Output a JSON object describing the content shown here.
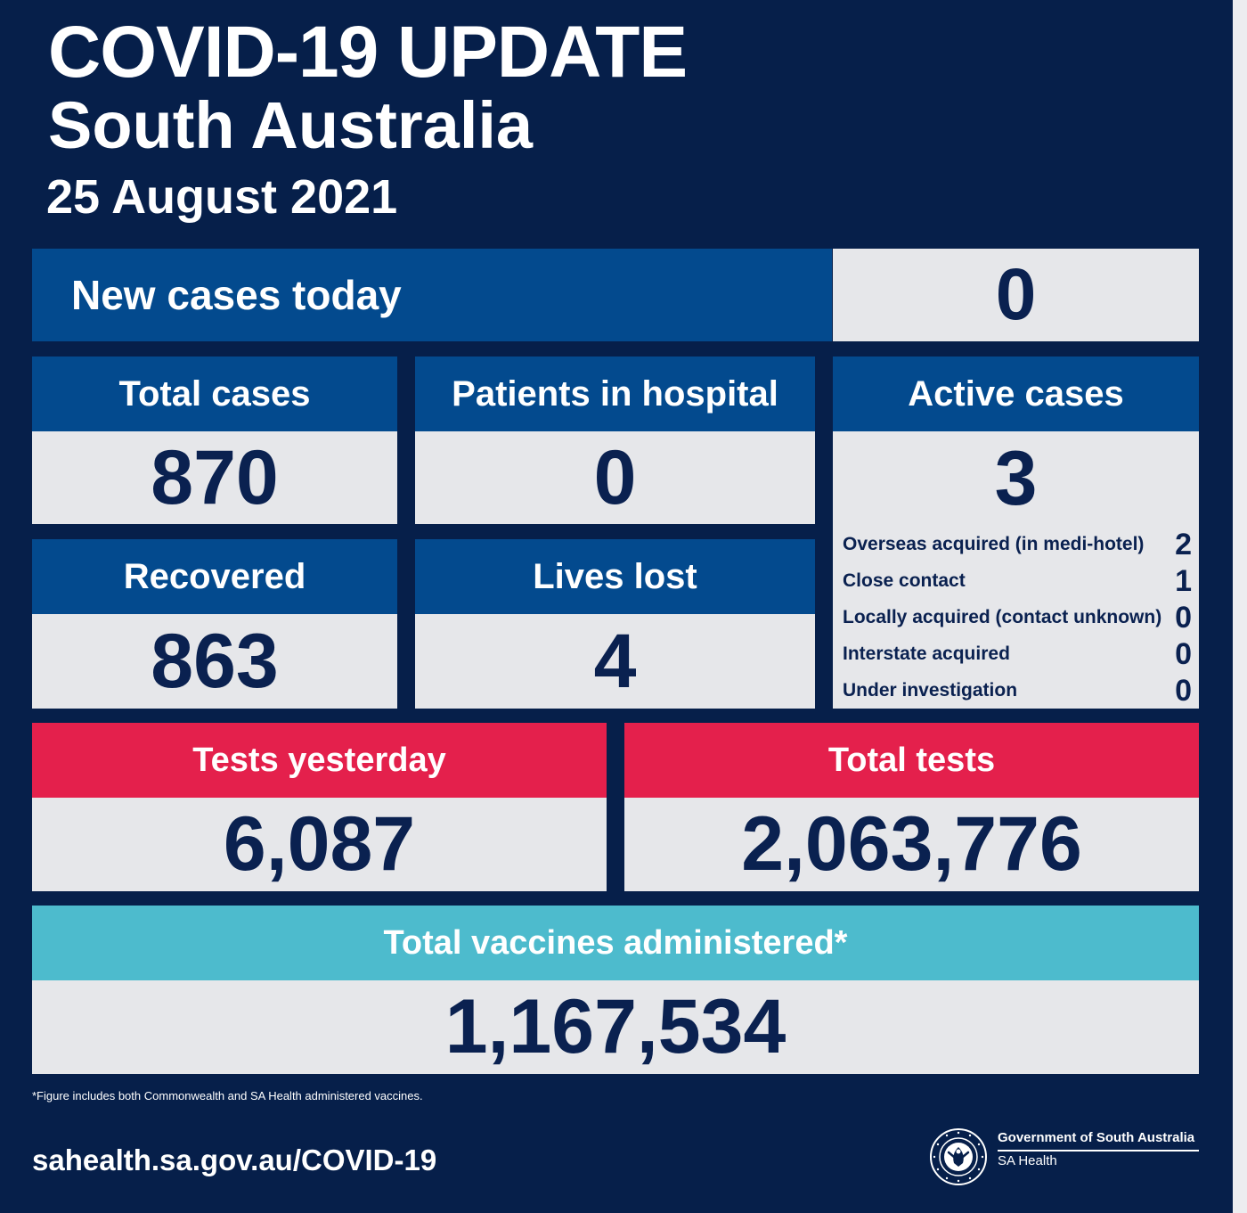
{
  "header": {
    "title": "COVID-19 UPDATE",
    "subtitle": "South Australia",
    "date": "25 August 2021"
  },
  "new_cases": {
    "label": "New cases today",
    "value": "0"
  },
  "total_cases": {
    "label": "Total cases",
    "value": "870"
  },
  "patients_in_hospital": {
    "label": "Patients in hospital",
    "value": "0"
  },
  "active_cases": {
    "label": "Active cases",
    "value": "3",
    "breakdown": [
      {
        "label": "Overseas acquired (in medi-hotel)",
        "value": "2"
      },
      {
        "label": "Close contact",
        "value": "1"
      },
      {
        "label": "Locally acquired (contact unknown)",
        "value": "0"
      },
      {
        "label": "Interstate acquired",
        "value": "0"
      },
      {
        "label": "Under investigation",
        "value": "0"
      }
    ]
  },
  "recovered": {
    "label": "Recovered",
    "value": "863"
  },
  "lives_lost": {
    "label": "Lives lost",
    "value": "4"
  },
  "tests_yesterday": {
    "label": "Tests yesterday",
    "value": "6,087"
  },
  "total_tests": {
    "label": "Total tests",
    "value": "2,063,776"
  },
  "vaccines": {
    "label": "Total vaccines administered*",
    "value": "1,167,534"
  },
  "footer": {
    "footnote": "*Figure includes both Commonwealth and SA Health administered vaccines.",
    "url": "sahealth.sa.gov.au/COVID-19",
    "gov_title": "Government of South Australia",
    "gov_subtitle": "SA Health",
    "logo_icon": "sa-government-emblem-icon"
  },
  "colors": {
    "background": "#061f4a",
    "header_blue": "#034a8e",
    "header_red": "#e4204c",
    "header_cyan": "#4dbbcd",
    "value_panel": "#e6e7ea",
    "value_text": "#0a2150"
  }
}
